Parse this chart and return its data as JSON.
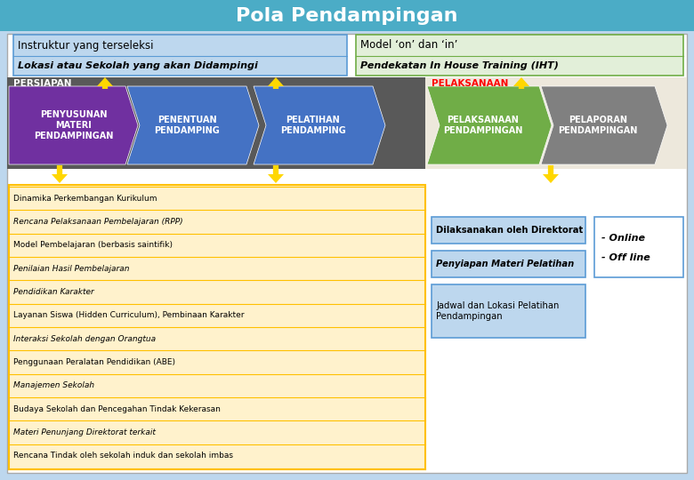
{
  "title": "Pola Pendampingan",
  "title_color": "#FFFFFF",
  "title_bg": "#4BACC6",
  "top_left_box1": "Instruktur yang terseleksi",
  "top_left_box2": "Lokasi atau Sekolah yang akan Didampingi",
  "top_right_box1": "Model ‘on’ dan ‘in’",
  "top_right_box2": "Pendekatan In House Training (IHT)",
  "left_label": "PERSIAPAN",
  "right_label": "PELAKSANAAN",
  "left_label_color": "#FFFFFF",
  "right_label_color": "#FF0000",
  "arrow_shapes": [
    {
      "label": "PENYUSUNAN\nMATERI\nPENDAMPINGAN",
      "color": "#7030A0"
    },
    {
      "label": "PENENTUAN\nPENDAMPING",
      "color": "#4472C4"
    },
    {
      "label": "PELATIHAN\nPENDAMPING",
      "color": "#4472C4"
    },
    {
      "label": "PELAKSANAAN\nPENDAMPINGAN",
      "color": "#70AD47"
    },
    {
      "label": "PELAPORAN\nPENDAMPINGAN",
      "color": "#808080"
    }
  ],
  "left_list_items": [
    {
      "text": "Dinamika Perkembangan Kurikulum",
      "italic": false
    },
    {
      "text": "Rencana Pelaksanaan Pembelajaran (RPP)",
      "italic": true
    },
    {
      "text": "Model Pembelajaran (berbasis saintifik)",
      "italic": false
    },
    {
      "text": "Penilaian Hasil Pembelajaran",
      "italic": true
    },
    {
      "text": "Pendidikan Karakter",
      "italic": true
    },
    {
      "text": "Layanan Siswa (Hidden Curriculum), Pembinaan Karakter",
      "italic": false
    },
    {
      "text": "",
      "italic": false
    },
    {
      "text": "Interaksi Sekolah dengan Orangtua",
      "italic": true
    },
    {
      "text": "Penggunaan Peralatan Pendidikan (ABE)",
      "italic": false
    },
    {
      "text": "Manajemen Sekolah",
      "italic": true
    },
    {
      "text": "Budaya Sekolah dan Pencegahan Tindak Kekerasan",
      "italic": false
    },
    {
      "text": "Materi Penunjang Direktorat terkait",
      "italic": true
    },
    {
      "text": "Rencana Tindak oleh sekolah induk dan sekolah imbas",
      "italic": false
    }
  ],
  "mid_list_items": [
    {
      "text": "Dilaksanakan oleh Direktorat",
      "italic": false,
      "bold": true
    },
    {
      "text": "Penyiapan Materi Pelatihan",
      "italic": true,
      "bold": false
    },
    {
      "text": "Jadwal dan Lokasi Pelatihan\nPendampingan",
      "italic": false,
      "bold": false
    }
  ],
  "right_list_items": [
    "- Online",
    "- Off line"
  ],
  "list_bg": "#FFF2CC",
  "list_border": "#FFC000",
  "mid_box_bg": "#BDD7EE",
  "mid_box_border": "#5B9BD5",
  "right_box_bg": "#FFFFFF",
  "right_box_border": "#5B9BD5",
  "outer_bg": "#BDD7EE",
  "top_left_box_bg": "#BDD7EE",
  "top_left_box_border": "#5B9BD5",
  "top_right_box_bg": "#E2EFD9",
  "top_right_box_border": "#70AD47",
  "left_band_bg": "#595959",
  "right_band_bg": "#EDE8DC",
  "arrow_color": "#FFD700"
}
